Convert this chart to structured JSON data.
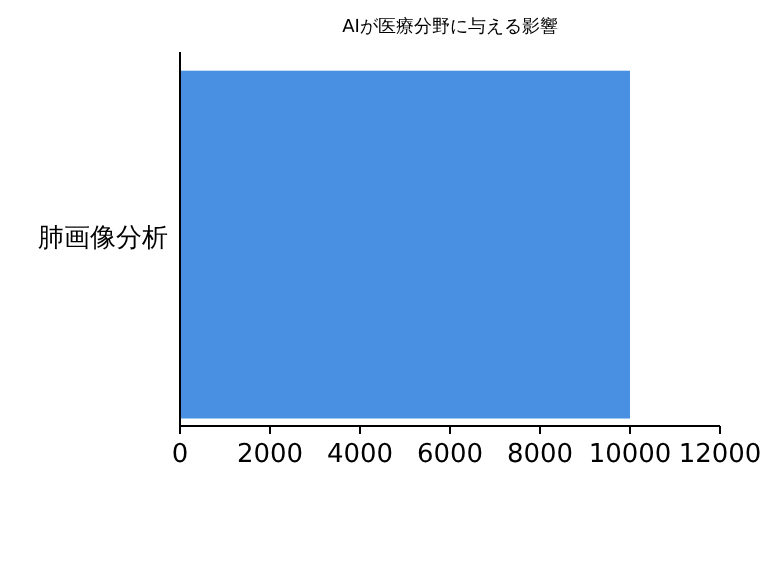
{
  "chart_data": {
    "type": "bar",
    "orientation": "horizontal",
    "title": "AIが医療分野に与える影響",
    "categories": [
      "肺画像分析"
    ],
    "values": [
      10000
    ],
    "color": "#4a90e2",
    "xlim": [
      0,
      12000
    ],
    "xticks": [
      0,
      2000,
      4000,
      6000,
      8000,
      10000,
      12000
    ]
  }
}
